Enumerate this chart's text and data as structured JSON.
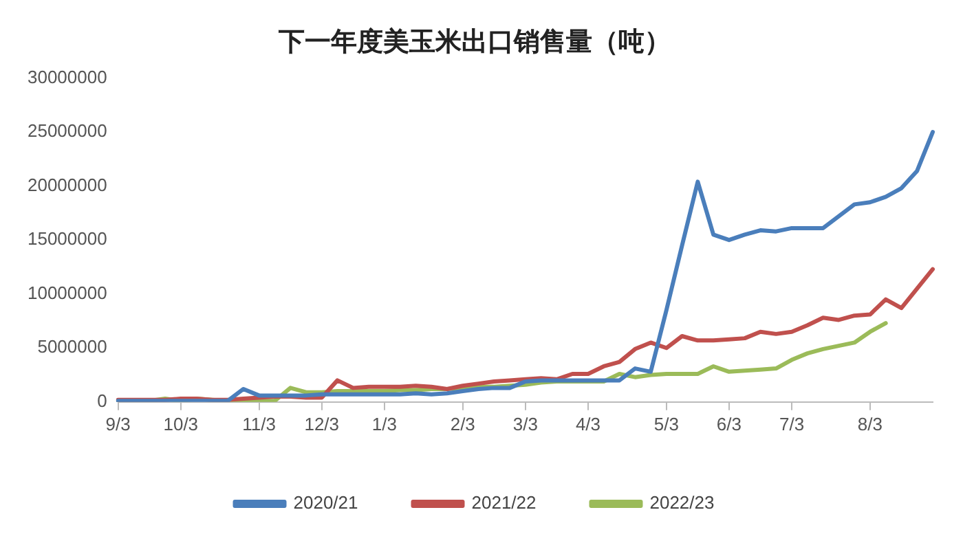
{
  "chart_data": {
    "type": "line",
    "title": "下一年度美玉米出口销售量（吨）",
    "categories": [
      "9/3",
      null,
      null,
      null,
      "10/3",
      null,
      null,
      null,
      null,
      "11/3",
      null,
      null,
      null,
      "12/3",
      null,
      null,
      null,
      "1/3",
      null,
      null,
      null,
      null,
      "2/3",
      null,
      null,
      null,
      "3/3",
      null,
      null,
      null,
      "4/3",
      null,
      null,
      null,
      null,
      "5/3",
      null,
      null,
      null,
      "6/3",
      null,
      null,
      null,
      "7/3",
      null,
      null,
      null,
      null,
      "8/3",
      null,
      null,
      null,
      null
    ],
    "series": [
      {
        "name": "2020/21",
        "color": "#4a7ebb",
        "values": [
          100000,
          100000,
          100000,
          100000,
          100000,
          100000,
          100000,
          100000,
          1200000,
          600000,
          600000,
          600000,
          600000,
          700000,
          700000,
          700000,
          700000,
          700000,
          700000,
          800000,
          700000,
          800000,
          1000000,
          1200000,
          1300000,
          1300000,
          1900000,
          2000000,
          2000000,
          2000000,
          2000000,
          2000000,
          2000000,
          3100000,
          2800000,
          8500000,
          14500000,
          20400000,
          15500000,
          15000000,
          15500000,
          15900000,
          15800000,
          16100000,
          16100000,
          16100000,
          17200000,
          18300000,
          18500000,
          19000000,
          19800000,
          21400000,
          25000000
        ]
      },
      {
        "name": "2021/22",
        "color": "#c0504d",
        "values": [
          200000,
          200000,
          200000,
          200000,
          300000,
          300000,
          200000,
          200000,
          300000,
          400000,
          500000,
          500000,
          400000,
          400000,
          2000000,
          1300000,
          1400000,
          1400000,
          1400000,
          1500000,
          1400000,
          1200000,
          1500000,
          1700000,
          1900000,
          2000000,
          2100000,
          2200000,
          2100000,
          2600000,
          2600000,
          3300000,
          3700000,
          4900000,
          5500000,
          5000000,
          6100000,
          5700000,
          5700000,
          5800000,
          5900000,
          6500000,
          6300000,
          6500000,
          7100000,
          7800000,
          7600000,
          8000000,
          8100000,
          9500000,
          8700000,
          10500000,
          12300000
        ]
      },
      {
        "name": "2022/23",
        "color": "#9bbb59",
        "values": [
          100000,
          100000,
          100000,
          300000,
          100000,
          300000,
          200000,
          100000,
          100000,
          100000,
          100000,
          1300000,
          900000,
          900000,
          1000000,
          1000000,
          1000000,
          1000000,
          1100000,
          1100000,
          1200000,
          1200000,
          1300000,
          1400000,
          1400000,
          1500000,
          1600000,
          1800000,
          1900000,
          1900000,
          1900000,
          1900000,
          2600000,
          2300000,
          2500000,
          2600000,
          2600000,
          2600000,
          3300000,
          2800000,
          2900000,
          3000000,
          3100000,
          3900000,
          4500000,
          4900000,
          5200000,
          5500000,
          6500000,
          7300000,
          null,
          null,
          null
        ]
      }
    ],
    "ylim": [
      0,
      30000000
    ],
    "yticks": [
      0,
      5000000,
      10000000,
      15000000,
      20000000,
      25000000,
      30000000
    ],
    "grid": false,
    "legend": "bottom",
    "marker": "none",
    "line_style": "solid"
  }
}
